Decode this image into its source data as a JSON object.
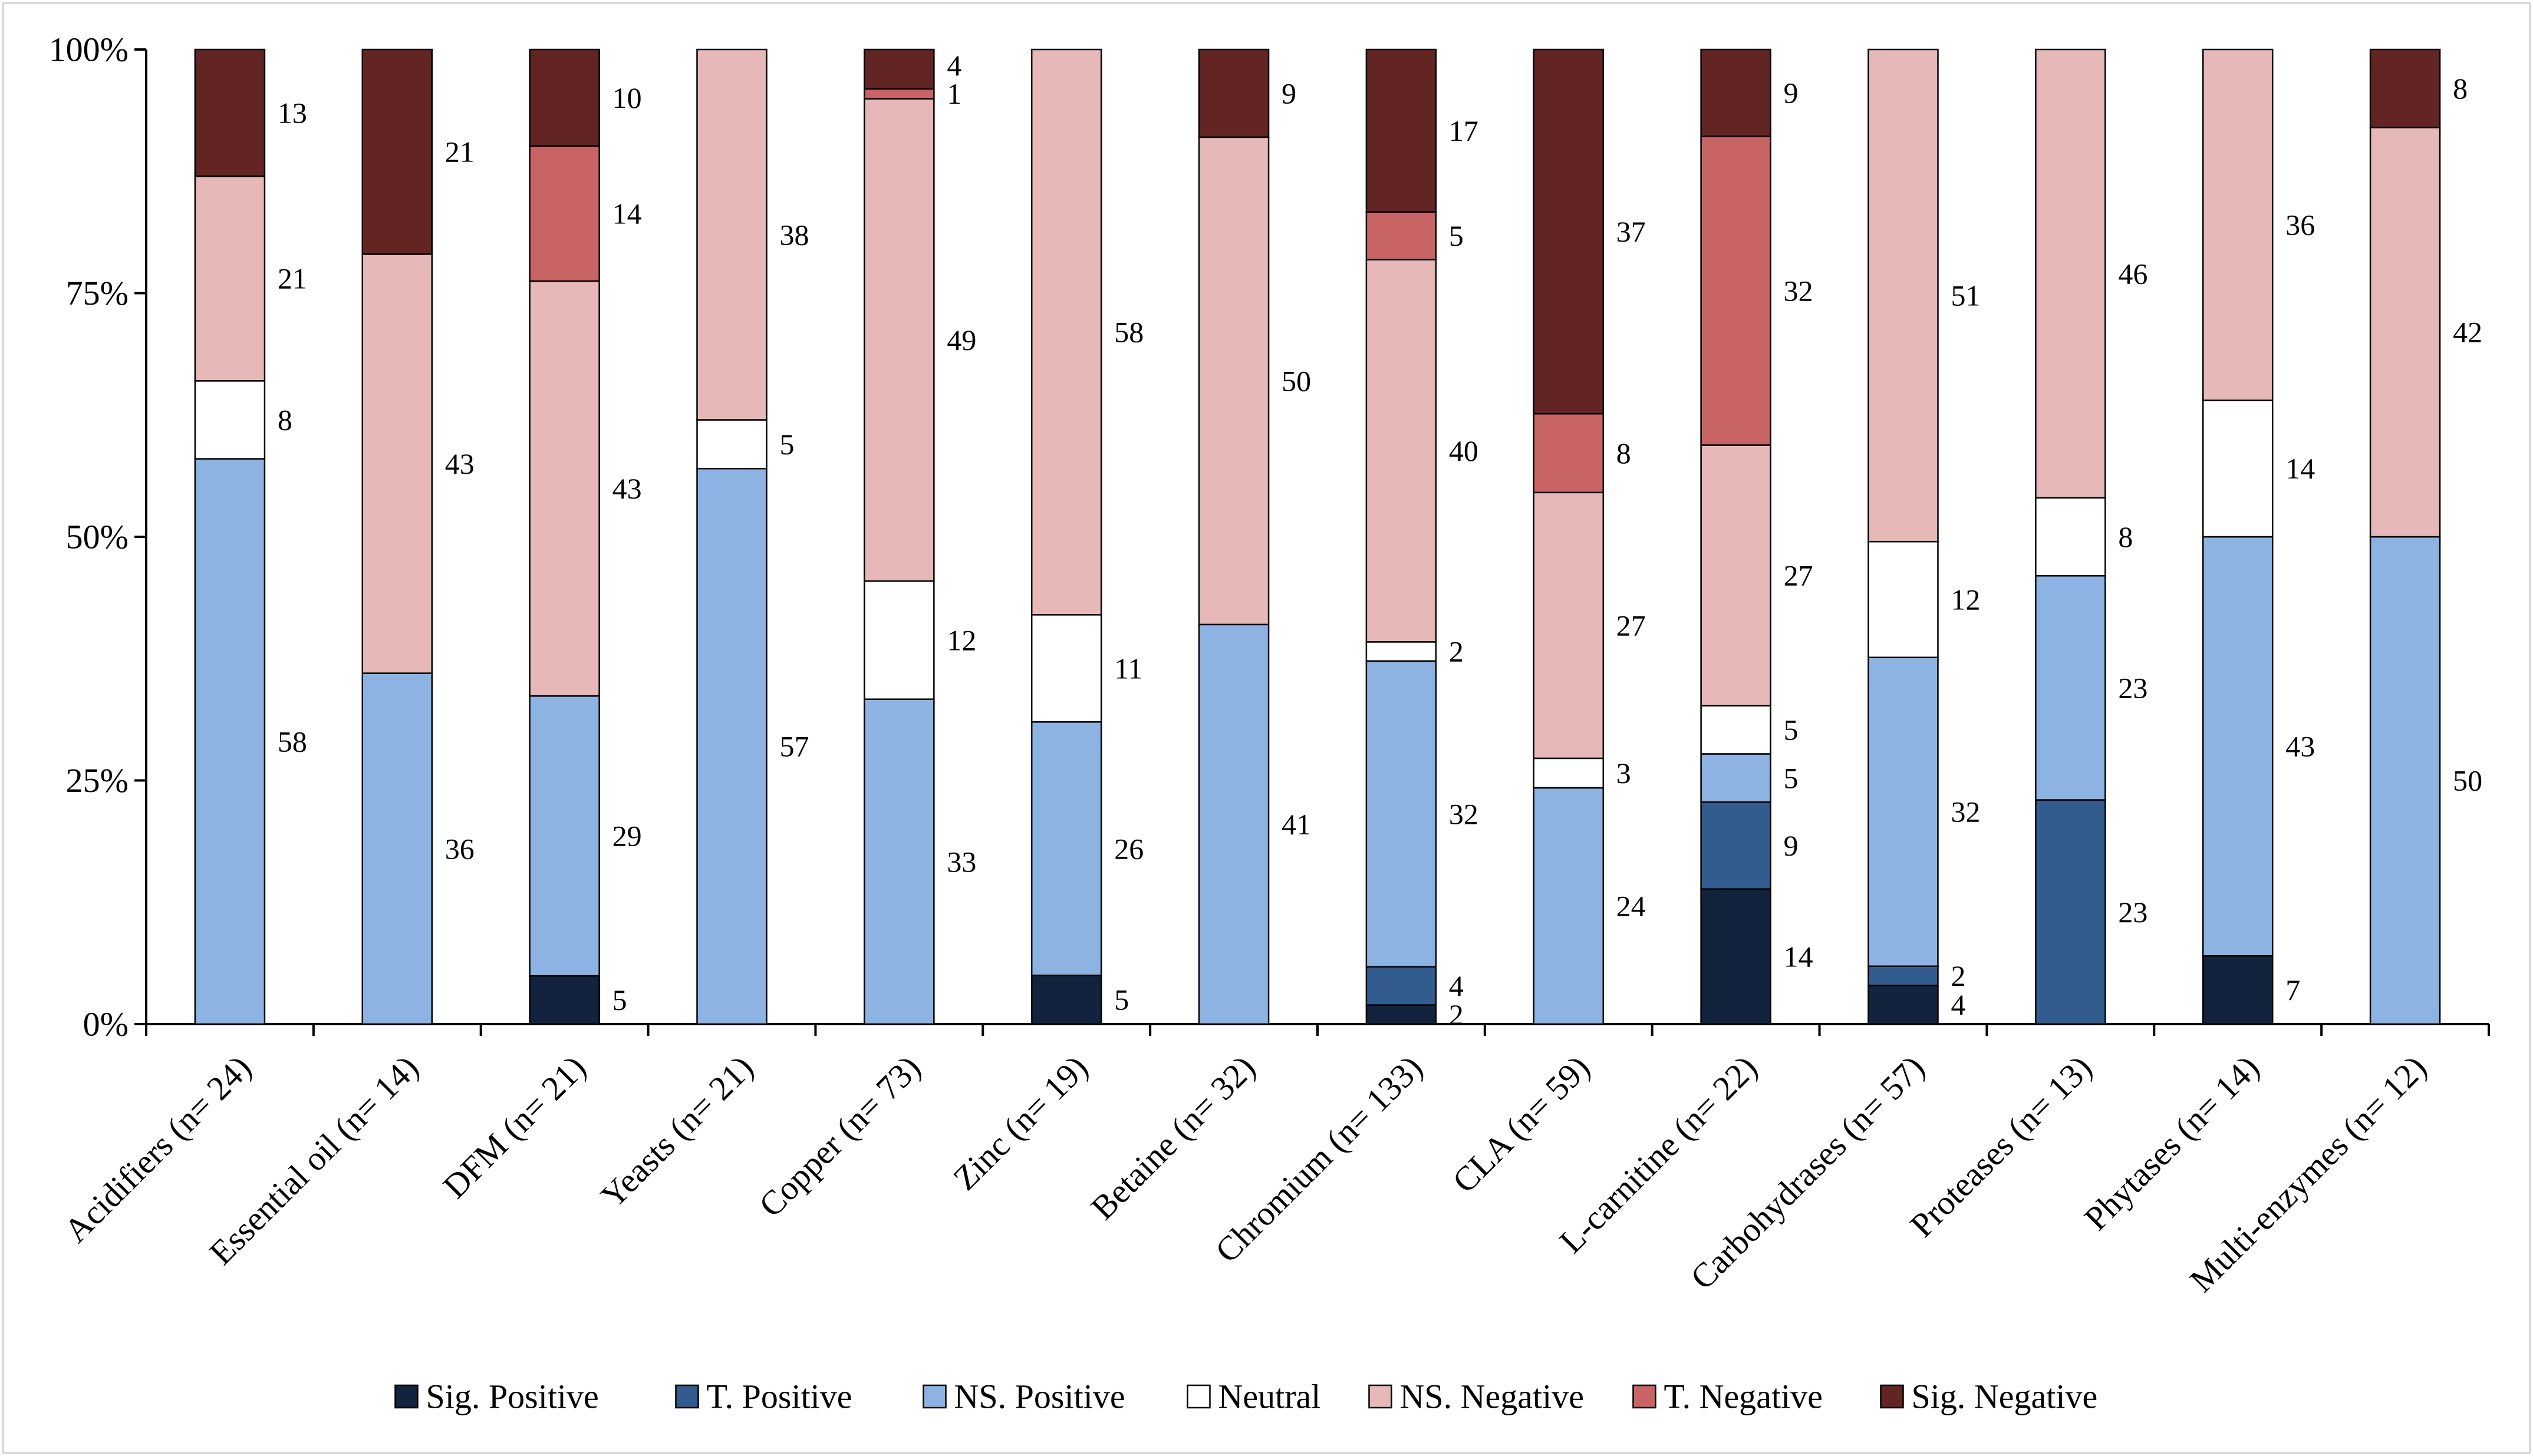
{
  "chart_data": {
    "type": "bar",
    "stacked": true,
    "percent_stacked": true,
    "title": "",
    "xlabel": "",
    "ylabel": "",
    "ylim": [
      0,
      100
    ],
    "yticks": [
      0,
      25,
      50,
      75,
      100
    ],
    "ytick_labels": [
      "0%",
      "25%",
      "50%",
      "75%",
      "100%"
    ],
    "grid": false,
    "legend_position": "bottom",
    "categories": [
      "Acidifiers (n= 24)",
      "Essential oil (n= 14)",
      "DFM (n= 21)",
      "Yeasts (n= 21)",
      "Copper (n= 73)",
      "Zinc (n= 19)",
      "Betaine (n= 32)",
      "Chromium (n= 133)",
      "CLA (n= 59)",
      "L-carnitine (n= 22)",
      "Carbohydrases (n= 57)",
      "Proteases (n= 13)",
      "Phytases (n= 14)",
      "Multi-enzymes (n= 12)"
    ],
    "series": [
      {
        "name": "Sig. Positive",
        "color": "#13233d",
        "values": [
          0,
          0,
          5,
          0,
          0,
          5,
          0,
          2,
          0,
          14,
          4,
          0,
          7,
          0
        ]
      },
      {
        "name": "T. Positive",
        "color": "#335c8e",
        "values": [
          0,
          0,
          0,
          0,
          0,
          0,
          0,
          4,
          0,
          9,
          2,
          23,
          0,
          0
        ]
      },
      {
        "name": "NS. Positive",
        "color": "#8db3e2",
        "values": [
          58,
          36,
          29,
          57,
          33,
          26,
          41,
          32,
          24,
          5,
          32,
          23,
          43,
          50
        ]
      },
      {
        "name": "Neutral",
        "color": "#ffffff",
        "values": [
          8,
          0,
          0,
          5,
          12,
          11,
          0,
          2,
          3,
          5,
          12,
          8,
          14,
          0
        ]
      },
      {
        "name": "NS. Negative",
        "color": "#e6b9b8",
        "values": [
          21,
          43,
          43,
          38,
          49,
          58,
          50,
          40,
          27,
          27,
          51,
          46,
          36,
          42
        ]
      },
      {
        "name": "T. Negative",
        "color": "#c86564",
        "values": [
          0,
          0,
          14,
          0,
          1,
          0,
          0,
          5,
          8,
          32,
          0,
          0,
          0,
          0
        ]
      },
      {
        "name": "Sig. Negative",
        "color": "#632523",
        "values": [
          13,
          21,
          10,
          0,
          4,
          0,
          9,
          17,
          37,
          9,
          0,
          0,
          0,
          8
        ]
      }
    ]
  }
}
